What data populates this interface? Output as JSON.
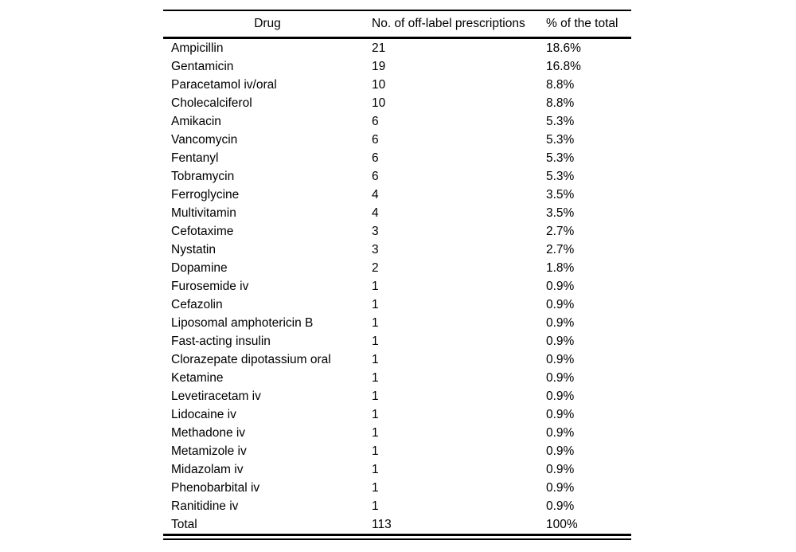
{
  "table": {
    "headers": {
      "drug": "Drug",
      "count": "No. of off-label prescriptions",
      "percent": "% of the total"
    },
    "rows": [
      {
        "drug": "Ampicillin",
        "count": "21",
        "percent": "18.6%"
      },
      {
        "drug": "Gentamicin",
        "count": "19",
        "percent": "16.8%"
      },
      {
        "drug": "Paracetamol iv/oral",
        "count": "10",
        "percent": "8.8%"
      },
      {
        "drug": "Cholecalciferol",
        "count": "10",
        "percent": "8.8%"
      },
      {
        "drug": "Amikacin",
        "count": "6",
        "percent": "5.3%"
      },
      {
        "drug": "Vancomycin",
        "count": "6",
        "percent": "5.3%"
      },
      {
        "drug": "Fentanyl",
        "count": "6",
        "percent": "5.3%"
      },
      {
        "drug": "Tobramycin",
        "count": "6",
        "percent": "5.3%"
      },
      {
        "drug": "Ferroglycine",
        "count": "4",
        "percent": "3.5%"
      },
      {
        "drug": "Multivitamin",
        "count": "4",
        "percent": "3.5%"
      },
      {
        "drug": "Cefotaxime",
        "count": "3",
        "percent": "2.7%"
      },
      {
        "drug": "Nystatin",
        "count": "3",
        "percent": "2.7%"
      },
      {
        "drug": "Dopamine",
        "count": "2",
        "percent": "1.8%"
      },
      {
        "drug": "Furosemide iv",
        "count": "1",
        "percent": "0.9%"
      },
      {
        "drug": "Cefazolin",
        "count": "1",
        "percent": "0.9%"
      },
      {
        "drug": "Liposomal amphotericin B",
        "count": "1",
        "percent": "0.9%"
      },
      {
        "drug": "Fast-acting insulin",
        "count": "1",
        "percent": "0.9%"
      },
      {
        "drug": "Clorazepate dipotassium oral",
        "count": "1",
        "percent": "0.9%"
      },
      {
        "drug": "Ketamine",
        "count": "1",
        "percent": "0.9%"
      },
      {
        "drug": "Levetiracetam iv",
        "count": "1",
        "percent": "0.9%"
      },
      {
        "drug": "Lidocaine iv",
        "count": "1",
        "percent": "0.9%"
      },
      {
        "drug": "Methadone iv",
        "count": "1",
        "percent": "0.9%"
      },
      {
        "drug": "Metamizole iv",
        "count": "1",
        "percent": "0.9%"
      },
      {
        "drug": "Midazolam iv",
        "count": "1",
        "percent": "0.9%"
      },
      {
        "drug": "Phenobarbital iv",
        "count": "1",
        "percent": "0.9%"
      },
      {
        "drug": "Ranitidine iv",
        "count": "1",
        "percent": "0.9%"
      },
      {
        "drug": "Total",
        "count": "113",
        "percent": "100%"
      }
    ]
  },
  "colors": {
    "text": "#000000",
    "rule": "#000000",
    "background": "#ffffff"
  }
}
